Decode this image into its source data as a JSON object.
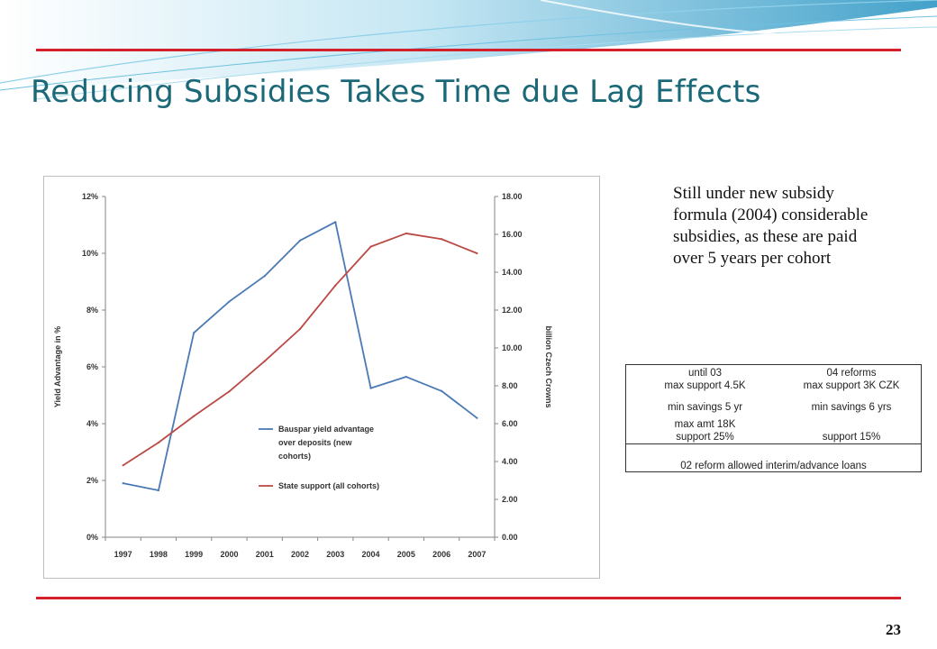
{
  "slide": {
    "title": "Reducing Subsidies Takes Time due Lag Effects",
    "page_number": "23",
    "note": "Still under new subsidy formula (2004) considerable subsidies, as these are paid over 5 years per cohort"
  },
  "table": {
    "col1_header": "until 03",
    "col2_header": "04 reforms",
    "col1_support": "max support 4.5K",
    "col2_support": "max support 3K CZK",
    "col1_savings": "min savings 5 yr",
    "col2_savings": "min savings 6 yrs",
    "col1_amount": "max amt 18K",
    "col1_rate": "support 25%",
    "col2_rate": "support 15%",
    "footer": "02 reform allowed interim/advance loans"
  },
  "chart_data": {
    "type": "line",
    "categories": [
      "1997",
      "1998",
      "1999",
      "2000",
      "2001",
      "2002",
      "2003",
      "2004",
      "2005",
      "2006",
      "2007"
    ],
    "y_left": {
      "label": "Yield Advantage in %",
      "range": [
        0,
        12
      ],
      "ticks": [
        "0%",
        "2%",
        "4%",
        "6%",
        "8%",
        "10%",
        "12%"
      ]
    },
    "y_right": {
      "label": "billion Czech Crowns",
      "range": [
        0,
        18
      ],
      "ticks": [
        "0.00",
        "2.00",
        "4.00",
        "6.00",
        "8.00",
        "10.00",
        "12.00",
        "14.00",
        "16.00",
        "18.00"
      ]
    },
    "series": [
      {
        "name": "Bauspar yield advantage over deposits (new cohorts)",
        "legend_lines": [
          "Bauspar yield advantage",
          "over deposits (new",
          "cohorts)"
        ],
        "axis": "left",
        "color": "#4a7ab5",
        "values": [
          1.9,
          1.65,
          7.2,
          8.3,
          9.2,
          10.45,
          11.1,
          5.25,
          5.65,
          5.15,
          4.2
        ]
      },
      {
        "name": "State support  (all cohorts)",
        "legend_lines": [
          "State support  (all cohorts)"
        ],
        "axis": "right",
        "color": "#bb4a47",
        "values": [
          3.8,
          5.0,
          6.4,
          7.7,
          9.3,
          11.0,
          13.3,
          15.35,
          16.05,
          15.75,
          15.0
        ]
      }
    ],
    "grid": false,
    "legend": "inside-bottom-center"
  },
  "colors": {
    "title": "#1a6878",
    "rule": "#d4202a",
    "swoosh": "#3aa3cc"
  }
}
